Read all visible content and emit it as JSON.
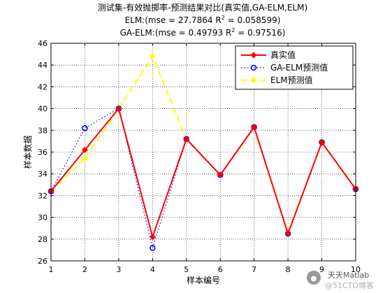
{
  "chart_data": {
    "type": "line",
    "title": "测试集-有效抛掷率-预测结果对比(真实值,GA-ELM,ELM)",
    "subtitle_elm": "ELM:(mse = 27.7864 R",
    "subtitle_elm_tail": " = 0.058599)",
    "subtitle_ga": "GA-ELM:(mse = 0.49793 R",
    "subtitle_ga_tail": " = 0.97516)",
    "superscript": "2",
    "xlabel": "样本编号",
    "ylabel": "样本数据",
    "xlim": [
      1,
      10
    ],
    "ylim": [
      26,
      46
    ],
    "xticks": [
      1,
      2,
      3,
      4,
      5,
      6,
      7,
      8,
      9,
      10
    ],
    "yticks": [
      26,
      28,
      30,
      32,
      34,
      36,
      38,
      40,
      42,
      44,
      46
    ],
    "grid": true,
    "legend_position": "top-right",
    "x": [
      1,
      2,
      3,
      4,
      5,
      6,
      7,
      8,
      9,
      10
    ],
    "series": [
      {
        "name": "真实值",
        "color": "#ff0000",
        "style": "solid",
        "marker": "diamond-filled",
        "values": [
          32.4,
          36.2,
          40.0,
          28.2,
          37.2,
          33.9,
          38.3,
          28.5,
          36.9,
          32.6
        ]
      },
      {
        "name": "GA-ELM预测值",
        "color": "#0000ff",
        "style": "dotted",
        "marker": "circle-open",
        "values": [
          32.4,
          38.2,
          40.0,
          27.2,
          37.2,
          33.9,
          38.3,
          28.5,
          36.9,
          32.6
        ]
      },
      {
        "name": "ELM预测值",
        "color": "#ffff00",
        "style": "dashed",
        "marker": "diamond-filled",
        "values": [
          32.4,
          35.4,
          40.0,
          44.8,
          37.2,
          33.9,
          38.3,
          28.5,
          36.9,
          32.6
        ]
      }
    ]
  },
  "watermark": {
    "text": "天天Matlab",
    "subtext": "@51CTO博客"
  }
}
